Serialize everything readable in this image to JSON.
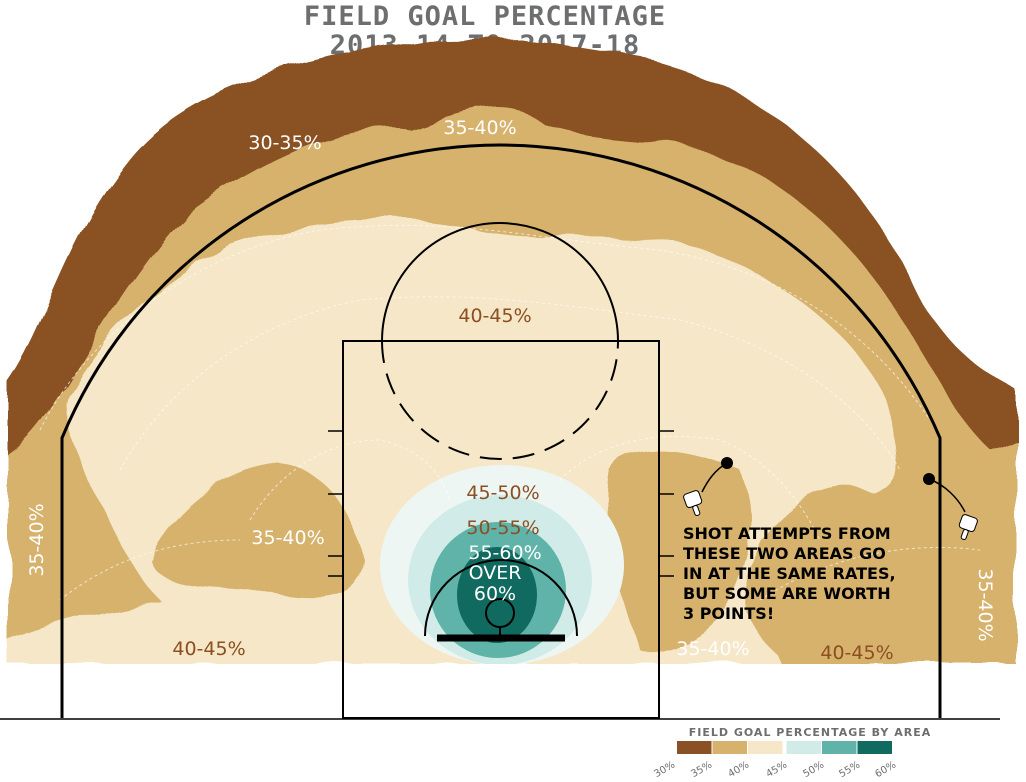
{
  "chart_data": {
    "type": "heatmap",
    "title": [
      "FIELD GOAL PERCENTAGE",
      "2013-14 TO 2017-18"
    ],
    "zone_labels": [
      {
        "id": "top-left-30-35",
        "text": "30-35%",
        "color": "#ffffff",
        "rotate": 0
      },
      {
        "id": "top-35-40",
        "text": "35-40%",
        "color": "#ffffff",
        "rotate": 0
      },
      {
        "id": "center-40-45",
        "text": "40-45%",
        "color": "#8b4f22",
        "rotate": 0
      },
      {
        "id": "center-45-50",
        "text": "45-50%",
        "color": "#8b4f22",
        "rotate": 0
      },
      {
        "id": "center-50-55",
        "text": "50-55%",
        "color": "#8b4f22",
        "rotate": 0
      },
      {
        "id": "center-55-60",
        "text": "55-60%",
        "color": "#ffffff",
        "rotate": 0
      },
      {
        "id": "over-60-a",
        "text": "OVER",
        "color": "#ffffff",
        "rotate": 0
      },
      {
        "id": "over-60-b",
        "text": "60%",
        "color": "#ffffff",
        "rotate": 0
      },
      {
        "id": "left-wing-35-40",
        "text": "35-40%",
        "color": "#ffffff",
        "rotate": 0
      },
      {
        "id": "left-corner-40-45",
        "text": "40-45%",
        "color": "#8b4f22",
        "rotate": 0
      },
      {
        "id": "right-baseline-35-40",
        "text": "35-40%",
        "color": "#ffffff",
        "rotate": 0
      },
      {
        "id": "right-corner-40-45",
        "text": "40-45%",
        "color": "#8b4f22",
        "rotate": 0
      },
      {
        "id": "left-side-35-40",
        "text": "35-40%",
        "color": "#ffffff",
        "rotate": -90
      },
      {
        "id": "right-side-35-40",
        "text": "35-40%",
        "color": "#ffffff",
        "rotate": 90
      }
    ],
    "annotation": [
      "SHOT ATTEMPTS FROM",
      "THESE TWO AREAS GO",
      "IN AT THE SAME RATES,",
      "BUT SOME ARE WORTH",
      "3 POINTS!"
    ],
    "legend": {
      "title": "FIELD GOAL PERCENTAGE BY AREA",
      "bins": [
        {
          "range": [
            30,
            35
          ],
          "color": "#8a5124"
        },
        {
          "range": [
            35,
            40
          ],
          "color": "#d6b26c"
        },
        {
          "range": [
            40,
            45
          ],
          "color": "#f5e7c7"
        },
        {
          "range": [
            50,
            55
          ],
          "color": "#d1ece8"
        },
        {
          "range": [
            55,
            60
          ],
          "color": "#5fb3a8"
        },
        {
          "range": [
            60,
            100
          ],
          "color": "#116a60"
        }
      ],
      "tick_labels": [
        "30%",
        "35%",
        "40%",
        "45%",
        "50%",
        "55%",
        "60%"
      ]
    }
  }
}
